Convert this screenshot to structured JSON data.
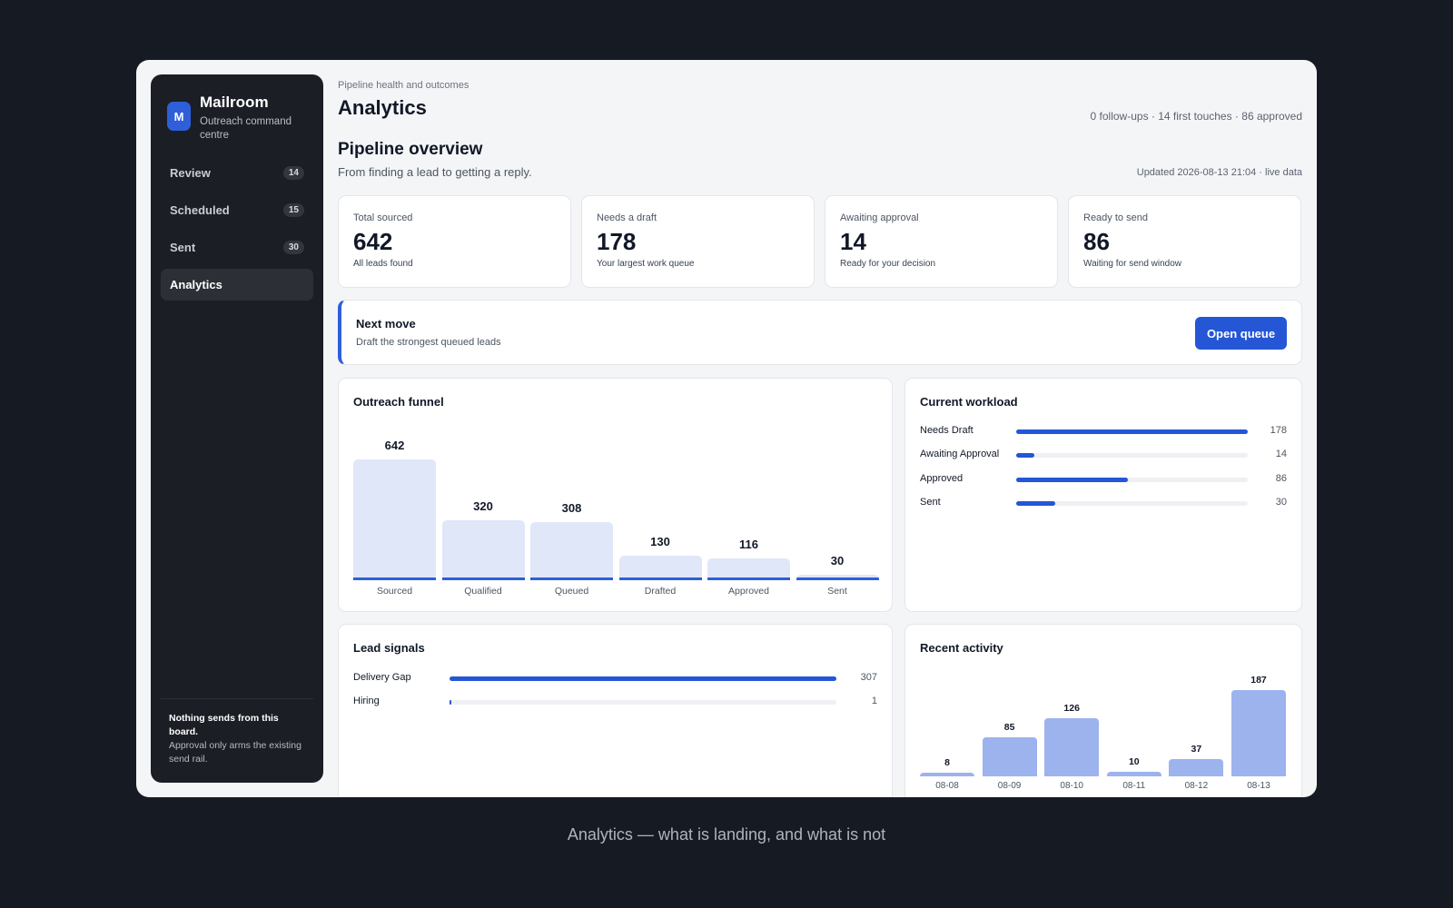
{
  "sidebar": {
    "logo_letter": "M",
    "app_name": "Mailroom",
    "app_subtitle": "Outreach command centre",
    "items": [
      {
        "label": "Review",
        "badge": "14"
      },
      {
        "label": "Scheduled",
        "badge": "15"
      },
      {
        "label": "Sent",
        "badge": "30"
      },
      {
        "label": "Analytics",
        "badge": ""
      }
    ],
    "footer_title": "Nothing sends from this board.",
    "footer_text": "Approval only arms the existing send rail."
  },
  "header": {
    "eyebrow": "Pipeline health and outcomes",
    "title": "Analytics",
    "meta": "0 follow-ups · 14 first touches · 86 approved"
  },
  "overview": {
    "title": "Pipeline overview",
    "subtitle": "From finding a lead to getting a reply.",
    "updated": "Updated 2026-08-13 21:04 · live data"
  },
  "stats": [
    {
      "label": "Total sourced",
      "value": "642",
      "note": "All leads found"
    },
    {
      "label": "Needs a draft",
      "value": "178",
      "note": "Your largest work queue"
    },
    {
      "label": "Awaiting approval",
      "value": "14",
      "note": "Ready for your decision"
    },
    {
      "label": "Ready to send",
      "value": "86",
      "note": "Waiting for send window"
    }
  ],
  "next_move": {
    "title": "Next move",
    "subtitle": "Draft the strongest queued leads",
    "button": "Open queue"
  },
  "funnel": {
    "title": "Outreach funnel",
    "stages": [
      {
        "label": "Sourced",
        "value": 642
      },
      {
        "label": "Qualified",
        "value": 320
      },
      {
        "label": "Queued",
        "value": 308
      },
      {
        "label": "Drafted",
        "value": 130
      },
      {
        "label": "Approved",
        "value": 116
      },
      {
        "label": "Sent",
        "value": 30
      }
    ]
  },
  "workload": {
    "title": "Current workload",
    "max": 178,
    "rows": [
      {
        "label": "Needs Draft",
        "value": 178
      },
      {
        "label": "Awaiting Approval",
        "value": 14
      },
      {
        "label": "Approved",
        "value": 86
      },
      {
        "label": "Sent",
        "value": 30
      }
    ]
  },
  "signals": {
    "title": "Lead signals",
    "max": 307,
    "rows": [
      {
        "label": "Delivery Gap",
        "value": 307
      },
      {
        "label": "Hiring",
        "value": 1
      }
    ]
  },
  "activity": {
    "title": "Recent activity",
    "days": [
      {
        "label": "08-08",
        "value": 8
      },
      {
        "label": "08-09",
        "value": 85
      },
      {
        "label": "08-10",
        "value": 126
      },
      {
        "label": "08-11",
        "value": 10
      },
      {
        "label": "08-12",
        "value": 37
      },
      {
        "label": "08-13",
        "value": 187
      }
    ]
  },
  "caption": "Analytics — what is landing, and what is not",
  "colors": {
    "accent": "#2456d6",
    "funnel_fill": "#dfe7f8",
    "activity_fill": "#9db3ee",
    "sidebar_bg": "#1b1e24",
    "page_bg": "#151a23"
  }
}
